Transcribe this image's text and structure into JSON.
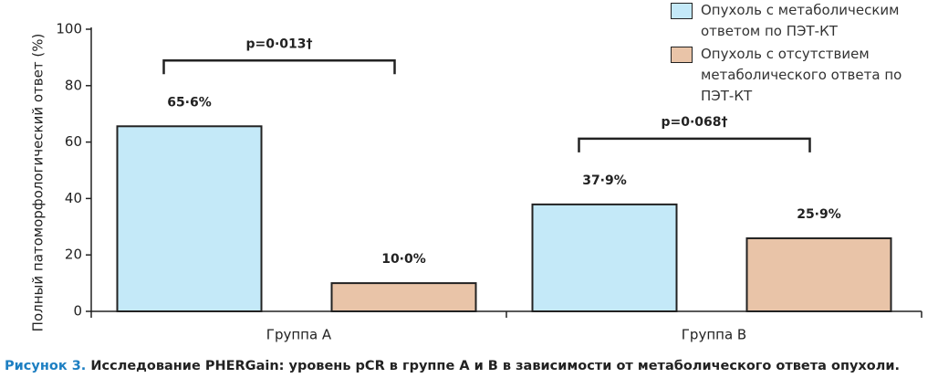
{
  "chart_data": {
    "type": "bar",
    "y_label": "Полный патоморфологический ответ (%)",
    "categories": [
      "Группа А",
      "Группа В"
    ],
    "series": [
      {
        "name": "Опухоль с метаболическим ответом по ПЭТ-КТ",
        "color": "#c4e9f8",
        "values": [
          65.6,
          37.9
        ],
        "value_labels": [
          "65·6%",
          "37·9%"
        ]
      },
      {
        "name": "Опухоль с отсутствием метаболического ответа по ПЭТ-КТ",
        "color": "#e9c4a8",
        "values": [
          10.0,
          25.9
        ],
        "value_labels": [
          "10·0%",
          "25·9%"
        ]
      }
    ],
    "annotations": [
      "p=0·013†",
      "p=0·068†"
    ],
    "ylim": [
      0,
      100
    ],
    "yticks": [
      0,
      20,
      40,
      60,
      80,
      100
    ],
    "legend": "top-right"
  },
  "caption": {
    "label": "Рисунок 3.",
    "text": "Исследование PHERGain: уровень pCR в группе А и В в зависимости от метаболического ответа опухоли."
  }
}
